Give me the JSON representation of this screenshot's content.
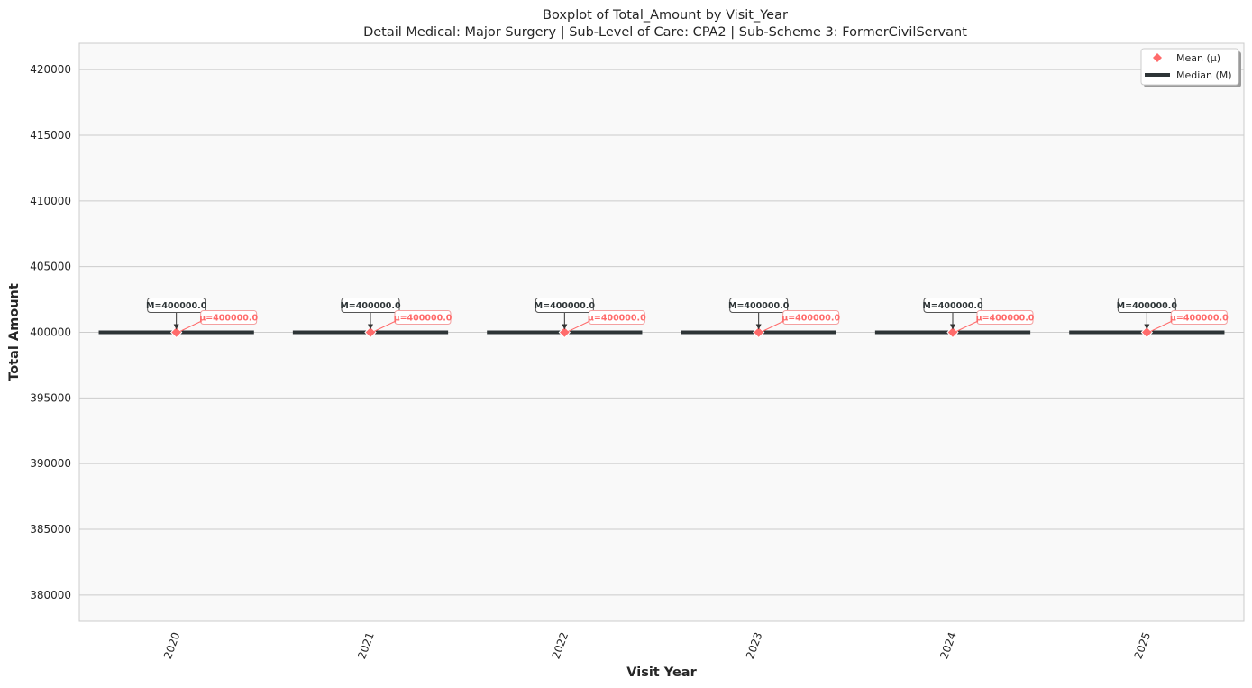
{
  "chart_data": {
    "type": "box",
    "title": "Boxplot of Total_Amount by Visit_Year",
    "subtitle": "Detail Medical: Major Surgery | Sub-Level of Care: CPA2 | Sub-Scheme 3: FormerCivilServant",
    "xlabel": "Visit Year",
    "ylabel": "Total Amount",
    "categories": [
      "2020",
      "2021",
      "2022",
      "2023",
      "2024",
      "2025"
    ],
    "median": [
      400000.0,
      400000.0,
      400000.0,
      400000.0,
      400000.0,
      400000.0
    ],
    "mean": [
      400000.0,
      400000.0,
      400000.0,
      400000.0,
      400000.0,
      400000.0
    ],
    "median_labels": [
      "M=400000.0",
      "M=400000.0",
      "M=400000.0",
      "M=400000.0",
      "M=400000.0",
      "M=400000.0"
    ],
    "mean_labels": [
      "μ=400000.0",
      "μ=400000.0",
      "μ=400000.0",
      "μ=400000.0",
      "μ=400000.0",
      "μ=400000.0"
    ],
    "ylim": [
      378000,
      422000
    ],
    "yticks": [
      380000,
      385000,
      390000,
      395000,
      400000,
      405000,
      410000,
      415000,
      420000
    ],
    "grid": "horizontal",
    "legend_position": "top-right",
    "legend": [
      {
        "name": "Mean (μ)",
        "marker": "diamond"
      },
      {
        "name": "Median (M)",
        "marker": "line"
      }
    ],
    "colors": {
      "mean": "#ff6b6b",
      "median": "#2d3436",
      "plot_bg": "#f9f9f9",
      "grid": "#cccccc"
    }
  }
}
